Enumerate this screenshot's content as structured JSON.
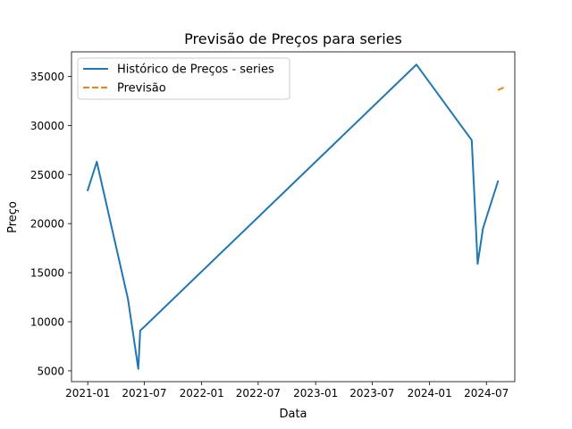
{
  "chart_data": {
    "type": "line",
    "title": "Previsão de Preços para series",
    "xlabel": "Data",
    "ylabel": "Preço",
    "xlim": [
      "2020-11-10",
      "2024-09-30"
    ],
    "ylim": [
      3900,
      37500
    ],
    "x_ticks": [
      "2021-01",
      "2021-07",
      "2022-01",
      "2022-07",
      "2023-01",
      "2023-07",
      "2024-01",
      "2024-07"
    ],
    "y_ticks": [
      5000,
      10000,
      15000,
      20000,
      25000,
      30000,
      35000
    ],
    "grid": false,
    "legend_position": "top-left",
    "series": [
      {
        "name": "Histórico de Preços - series",
        "color": "#1f77b4",
        "style": "solid",
        "points": [
          {
            "x": "2021-01-01",
            "y": 23400
          },
          {
            "x": "2021-01-30",
            "y": 26300
          },
          {
            "x": "2021-05-10",
            "y": 12300
          },
          {
            "x": "2021-06-12",
            "y": 5200
          },
          {
            "x": "2021-06-18",
            "y": 9100
          },
          {
            "x": "2021-07-05",
            "y": 9600
          },
          {
            "x": "2023-11-20",
            "y": 36200
          },
          {
            "x": "2024-05-15",
            "y": 28500
          },
          {
            "x": "2024-06-03",
            "y": 15900
          },
          {
            "x": "2024-06-20",
            "y": 19500
          },
          {
            "x": "2024-08-07",
            "y": 24300
          }
        ]
      },
      {
        "name": "Previsão",
        "color": "#ff7f0e",
        "style": "dashed",
        "points": [
          {
            "x": "2024-08-07",
            "y": 33600
          },
          {
            "x": "2024-08-28",
            "y": 33900
          }
        ]
      }
    ]
  }
}
